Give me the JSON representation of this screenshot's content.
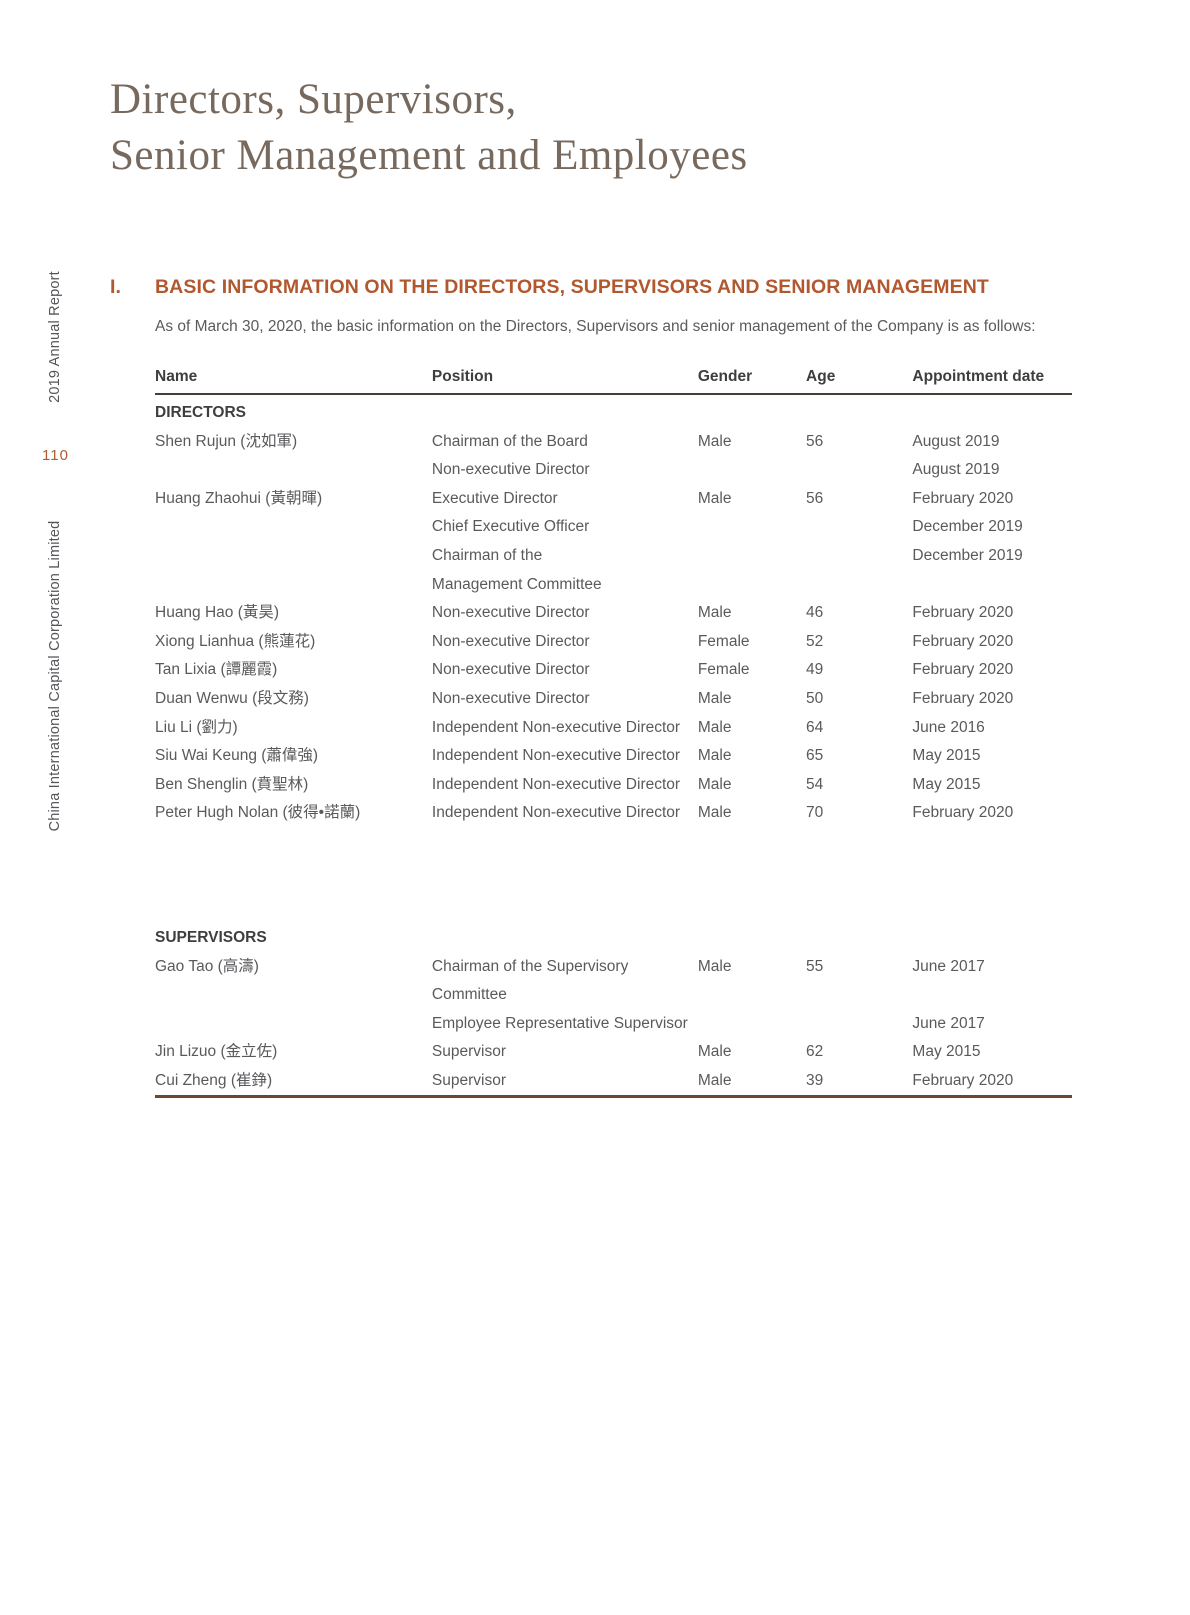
{
  "colors": {
    "accent_orange": "#b2582f",
    "title_brown": "#77695e",
    "body_gray": "#58595b",
    "header_rule": "#463e34",
    "table_bottom_rule": "#6e4733"
  },
  "title": {
    "line1": "Directors, Supervisors,",
    "line2": "Senior Management and Employees"
  },
  "sidebar": {
    "annual_report": "2019 Annual Report",
    "page_number": "110",
    "company": "China International Capital Corporation Limited"
  },
  "section": {
    "numeral": "I.",
    "heading": "BASIC INFORMATION ON THE DIRECTORS, SUPERVISORS AND SENIOR MANAGEMENT",
    "intro": "As of March 30, 2020, the basic information on the Directors, Supervisors and senior management of the Company is as follows:"
  },
  "table": {
    "headers": [
      "Name",
      "Position",
      "Gender",
      "Age",
      "Appointment date"
    ],
    "col_widths": [
      "30.2%",
      "29%",
      "11.8%",
      "11.6%",
      "17.4%"
    ],
    "groups": [
      {
        "label": "DIRECTORS",
        "rows": [
          {
            "name": "Shen Rujun (沈如軍)",
            "position": "Chairman of the Board",
            "gender": "Male",
            "age": "56",
            "date": "August 2019"
          },
          {
            "name": "",
            "position": "Non-executive Director",
            "gender": "",
            "age": "",
            "date": "August 2019"
          },
          {
            "name": "Huang Zhaohui (黃朝暉)",
            "position": "Executive Director",
            "gender": "Male",
            "age": "56",
            "date": "February 2020"
          },
          {
            "name": "",
            "position": "Chief Executive Officer",
            "gender": "",
            "age": "",
            "date": "December 2019"
          },
          {
            "name": "",
            "position": "Chairman of the",
            "gender": "",
            "age": "",
            "date": "December 2019"
          },
          {
            "name": "",
            "position": "Management Committee",
            "gender": "",
            "age": "",
            "date": ""
          },
          {
            "name": "Huang Hao (黃昊)",
            "position": "Non-executive Director",
            "gender": "Male",
            "age": "46",
            "date": "February 2020"
          },
          {
            "name": "Xiong Lianhua (熊蓮花)",
            "position": "Non-executive Director",
            "gender": "Female",
            "age": "52",
            "date": "February 2020"
          },
          {
            "name": "Tan Lixia (譚麗霞)",
            "position": "Non-executive Director",
            "gender": "Female",
            "age": "49",
            "date": "February 2020"
          },
          {
            "name": "Duan Wenwu (段文務)",
            "position": "Non-executive Director",
            "gender": "Male",
            "age": "50",
            "date": "February 2020"
          },
          {
            "name": "Liu Li (劉力)",
            "position": "Independent Non-executive Director",
            "gender": "Male",
            "age": "64",
            "date": "June 2016"
          },
          {
            "name": "Siu Wai Keung (蕭偉強)",
            "position": "Independent Non-executive Director",
            "gender": "Male",
            "age": "65",
            "date": "May 2015"
          },
          {
            "name": "Ben Shenglin (賁聖林)",
            "position": "Independent Non-executive Director",
            "gender": "Male",
            "age": "54",
            "date": "May 2015"
          },
          {
            "name": "Peter Hugh Nolan (彼得•諾蘭)",
            "position": "Independent Non-executive Director",
            "gender": "Male",
            "age": "70",
            "date": "February 2020"
          }
        ]
      },
      {
        "label": "SUPERVISORS",
        "rows": [
          {
            "name": "Gao Tao (高濤)",
            "position": "Chairman of the Supervisory",
            "gender": "Male",
            "age": "55",
            "date": "June 2017"
          },
          {
            "name": "",
            "position": "Committee",
            "gender": "",
            "age": "",
            "date": ""
          },
          {
            "name": "",
            "position": "Employee Representative Supervisor",
            "gender": "",
            "age": "",
            "date": "June 2017"
          },
          {
            "name": "Jin Lizuo (金立佐)",
            "position": "Supervisor",
            "gender": "Male",
            "age": "62",
            "date": "May 2015"
          },
          {
            "name": "Cui Zheng (崔錚)",
            "position": "Supervisor",
            "gender": "Male",
            "age": "39",
            "date": "February 2020"
          }
        ]
      }
    ]
  }
}
